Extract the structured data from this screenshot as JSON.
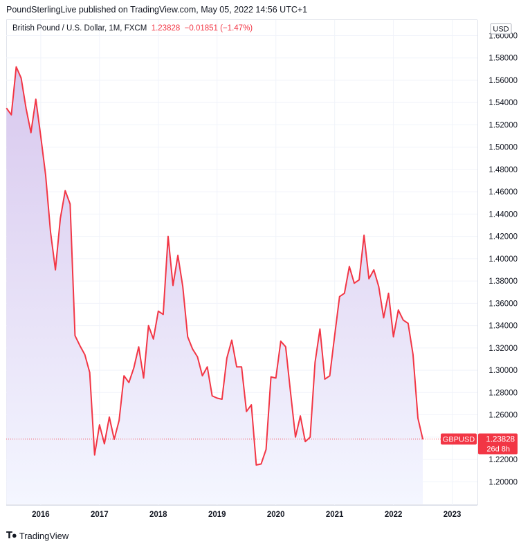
{
  "header": {
    "text": "PoundSterlingLive published on TradingView.com, May 05, 2022 14:56 UTC+1"
  },
  "legend": {
    "symbol": "British Pound / U.S. Dollar, 1M, FXCM",
    "last": "1.23828",
    "change": "−0.01851 (−1.47%)"
  },
  "currency_label": "USD",
  "price_tag": {
    "symbol": "GBPUSD",
    "price": "1.23828",
    "countdown": "26d 8h"
  },
  "branding": "TradingView",
  "colors": {
    "line": "#f23645",
    "fill_top": "#d8c8ee",
    "fill_bottom": "#f4f6ff",
    "grid": "#f0f3fa",
    "axis_text": "#131722"
  },
  "chart_data": {
    "type": "area",
    "title": "British Pound / U.S. Dollar, 1M, FXCM",
    "ylim": [
      1.18,
      1.6
    ],
    "yticks": [
      "1.60000",
      "1.58000",
      "1.56000",
      "1.54000",
      "1.52000",
      "1.50000",
      "1.48000",
      "1.46000",
      "1.44000",
      "1.42000",
      "1.40000",
      "1.38000",
      "1.36000",
      "1.34000",
      "1.32000",
      "1.30000",
      "1.28000",
      "1.26000",
      "1.24000",
      "1.22000",
      "1.20000"
    ],
    "xticks": [
      "2016",
      "2017",
      "2018",
      "2019",
      "2020",
      "2021",
      "2022",
      "2023"
    ],
    "grid": true,
    "series": [
      {
        "values": [
          1.535,
          1.529,
          1.572,
          1.562,
          1.535,
          1.513,
          1.543,
          1.51,
          1.475,
          1.424,
          1.39,
          1.436,
          1.461,
          1.449,
          1.331,
          1.322,
          1.314,
          1.298,
          1.224,
          1.251,
          1.234,
          1.258,
          1.238,
          1.255,
          1.295,
          1.289,
          1.302,
          1.321,
          1.293,
          1.34,
          1.328,
          1.353,
          1.35,
          1.42,
          1.376,
          1.403,
          1.375,
          1.33,
          1.319,
          1.312,
          1.295,
          1.303,
          1.277,
          1.275,
          1.274,
          1.311,
          1.327,
          1.303,
          1.303,
          1.263,
          1.269,
          1.215,
          1.216,
          1.229,
          1.294,
          1.293,
          1.326,
          1.321,
          1.28,
          1.24,
          1.259,
          1.236,
          1.24,
          1.307,
          1.337,
          1.292,
          1.295,
          1.331,
          1.366,
          1.369,
          1.393,
          1.378,
          1.381,
          1.421,
          1.382,
          1.39,
          1.375,
          1.347,
          1.369,
          1.33,
          1.354,
          1.345,
          1.342,
          1.314,
          1.257,
          1.238
        ]
      }
    ],
    "last_value": 1.23828
  }
}
